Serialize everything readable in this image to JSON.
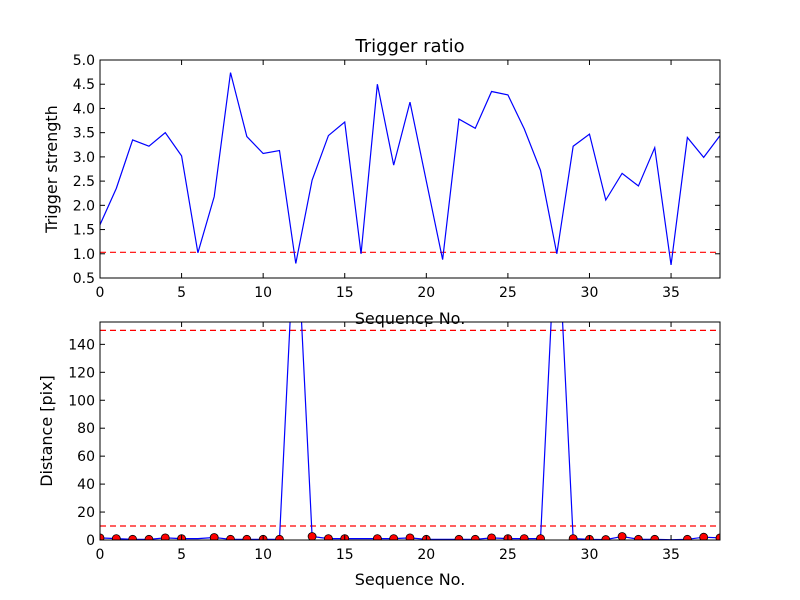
{
  "chart_data": [
    {
      "type": "line",
      "title": "Trigger ratio",
      "xlabel": "Sequence No.",
      "ylabel": "Trigger strength",
      "xlim": [
        0,
        38
      ],
      "ylim": [
        0.5,
        5.0
      ],
      "xticks": [
        0,
        5,
        10,
        15,
        20,
        25,
        30,
        35
      ],
      "yticks": [
        0.5,
        1.0,
        1.5,
        2.0,
        2.5,
        3.0,
        3.5,
        4.0,
        4.5,
        5.0
      ],
      "ytick_format": 1,
      "grid": false,
      "series": [
        {
          "color": "#0000ff",
          "marker": "none",
          "x": [
            0,
            1,
            2,
            3,
            4,
            5,
            6,
            7,
            8,
            9,
            10,
            11,
            12,
            13,
            14,
            15,
            16,
            17,
            18,
            19,
            20,
            21,
            22,
            23,
            24,
            25,
            26,
            27,
            28,
            29,
            30,
            31,
            32,
            33,
            34,
            35,
            36,
            37,
            38
          ],
          "values": [
            1.6,
            2.35,
            3.35,
            3.22,
            3.5,
            3.02,
            1.02,
            2.18,
            4.74,
            3.42,
            3.07,
            3.13,
            0.8,
            2.52,
            3.44,
            3.72,
            1.0,
            4.5,
            2.83,
            4.13,
            2.5,
            0.88,
            3.78,
            3.59,
            4.35,
            4.28,
            3.58,
            2.72,
            1.0,
            3.22,
            3.47,
            2.11,
            2.66,
            2.4,
            3.19,
            0.77,
            3.4,
            2.99,
            3.44
          ]
        }
      ],
      "hlines": [
        {
          "y": 1.03,
          "color": "#ff0000",
          "style": "dashed"
        }
      ]
    },
    {
      "type": "line",
      "title": "",
      "xlabel": "Sequence No.",
      "ylabel": "Distance [pix]",
      "xlim": [
        0,
        38
      ],
      "ylim": [
        0,
        156
      ],
      "xticks": [
        0,
        5,
        10,
        15,
        20,
        25,
        30,
        35
      ],
      "yticks": [
        0,
        20,
        40,
        60,
        80,
        100,
        120,
        140
      ],
      "ytick_format": 0,
      "grid": false,
      "series": [
        {
          "color": "#0000ff",
          "marker": "none",
          "x": [
            0,
            1,
            2,
            3,
            4,
            5,
            6,
            7,
            8,
            9,
            10,
            11,
            12,
            13,
            14,
            15,
            16,
            17,
            18,
            19,
            20,
            21,
            22,
            23,
            24,
            25,
            26,
            27,
            28,
            29,
            30,
            31,
            32,
            33,
            34,
            35,
            36,
            37,
            38
          ],
          "values": [
            1.5,
            1.0,
            0.5,
            0.5,
            1.5,
            1.0,
            1.0,
            1.8,
            0.5,
            0.5,
            0.5,
            0.5,
            240,
            2.5,
            1.0,
            1.0,
            1.0,
            1.0,
            1.0,
            1.5,
            0.5,
            0.5,
            0.5,
            0.5,
            1.5,
            1.0,
            1.0,
            1.0,
            240,
            1.0,
            0.5,
            0.3,
            2.5,
            0.5,
            0.5,
            0.2,
            0.5,
            2.0,
            1.5
          ]
        },
        {
          "color": "#ff0000",
          "marker": "circle",
          "x": [
            0,
            1,
            2,
            3,
            4,
            5,
            7,
            8,
            9,
            10,
            11,
            13,
            14,
            15,
            17,
            18,
            19,
            20,
            22,
            23,
            24,
            25,
            26,
            27,
            29,
            30,
            31,
            32,
            33,
            34,
            36,
            37,
            38
          ],
          "values": [
            1.5,
            1.0,
            0.5,
            0.5,
            1.5,
            1.0,
            1.8,
            0.5,
            0.5,
            0.5,
            0.5,
            2.5,
            1.0,
            1.0,
            1.0,
            1.0,
            1.5,
            0.5,
            0.5,
            0.5,
            1.5,
            1.0,
            1.0,
            1.0,
            1.0,
            0.5,
            0.3,
            2.5,
            0.5,
            0.5,
            0.5,
            2.0,
            1.5
          ]
        }
      ],
      "hlines": [
        {
          "y": 150,
          "color": "#ff0000",
          "style": "dashed"
        },
        {
          "y": 10,
          "color": "#ff0000",
          "style": "dashed"
        }
      ]
    }
  ]
}
